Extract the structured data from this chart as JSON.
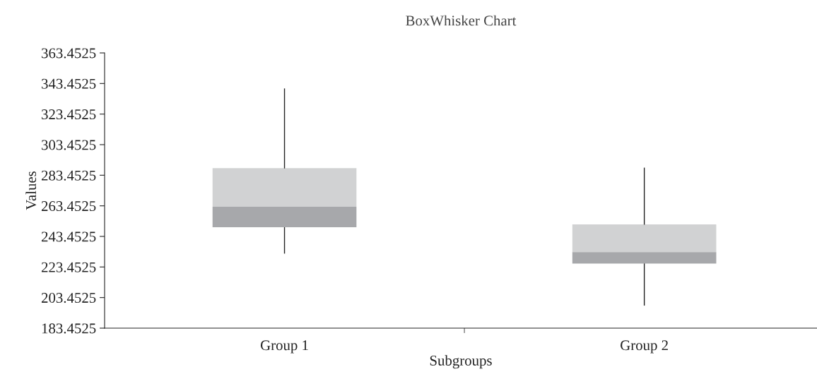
{
  "chart_data": {
    "type": "box",
    "title": "BoxWhisker Chart",
    "xlabel": "Subgroups",
    "ylabel": "Values",
    "categories": [
      "Group 1",
      "Group 2"
    ],
    "series": [
      {
        "color": "#a7a8ab",
        "boxes": [
          {
            "low": 232.5,
            "q1": 249.4,
            "median": 262.8,
            "q3": 288.1,
            "high": 339.9
          },
          {
            "low": 198.5,
            "q1": 225.7,
            "median": 233.2,
            "q3": 251.3,
            "high": 288.1
          }
        ]
      }
    ],
    "ylim": [
      183.4525,
      363.4525
    ],
    "yticks": [
      183.4525,
      203.4525,
      223.4525,
      243.4525,
      263.4525,
      283.4525,
      303.4525,
      323.4525,
      343.4525,
      363.4525
    ],
    "grid": false,
    "legend": false
  }
}
